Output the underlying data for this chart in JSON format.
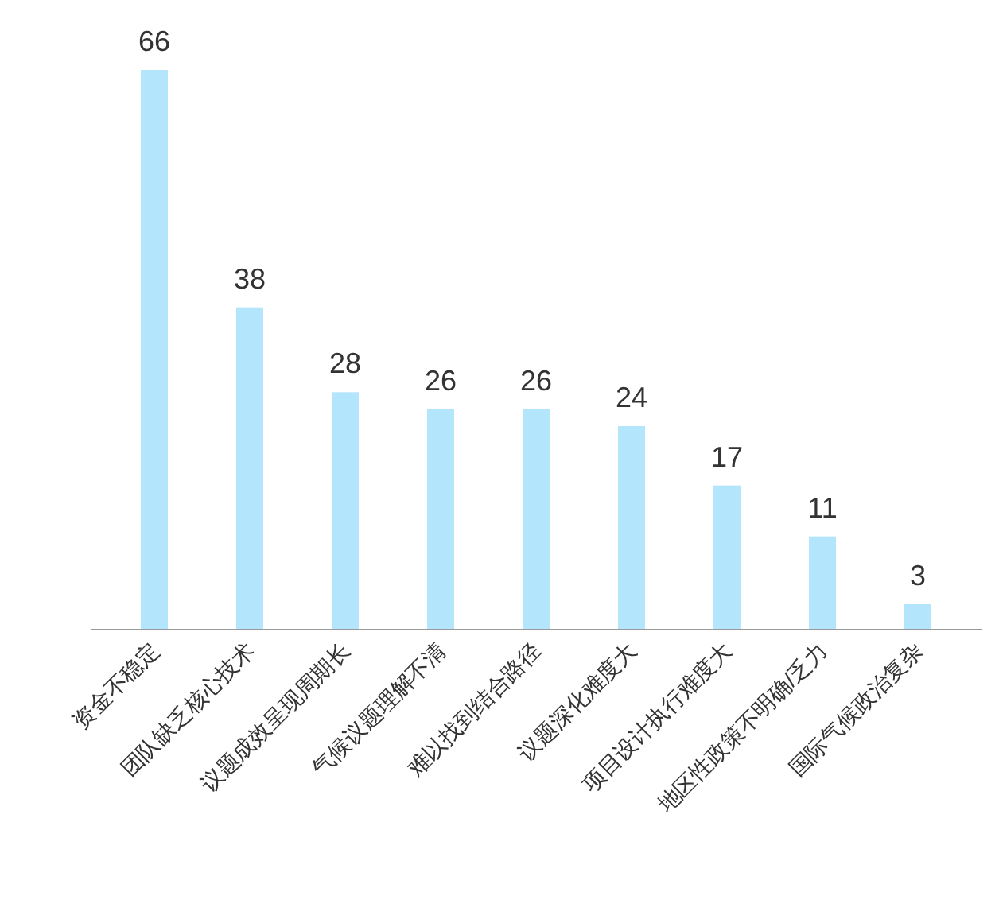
{
  "chart_data": {
    "type": "bar",
    "categories": [
      "资金不稳定",
      "团队缺乏核心技术",
      "议题成效呈现周期长",
      "气候议题理解不清",
      "难以找到结合路径",
      "议题深化难度大",
      "项目设计执行难度大",
      "地区性政策不明确/乏力",
      "国际气候政治复杂"
    ],
    "values": [
      66,
      38,
      28,
      26,
      26,
      24,
      17,
      11,
      3
    ],
    "color": "#b3e5fc",
    "data_labels": true
  }
}
